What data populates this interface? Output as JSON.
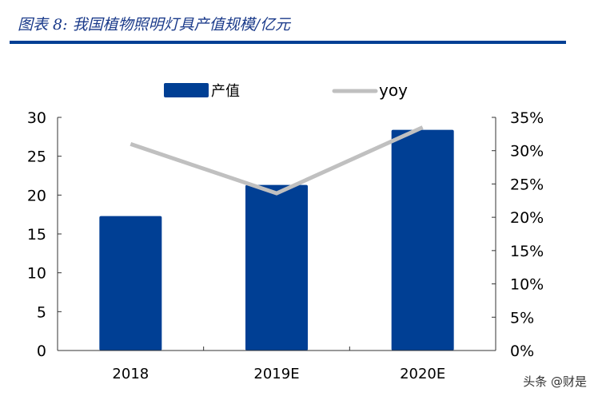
{
  "header": {
    "title": "图表 8:  我国植物照明灯具产值规模/亿元"
  },
  "watermark": "头条 @财是",
  "chart_data": {
    "type": "bar",
    "title": "图表 8:  我国植物照明灯具产值规模/亿元",
    "categories": [
      "2018",
      "2019E",
      "2020E"
    ],
    "series": [
      {
        "name": "产值",
        "type": "bar",
        "axis": "left",
        "values": [
          17.3,
          21.3,
          28.4
        ],
        "color": "#003f94"
      },
      {
        "name": "yoy",
        "type": "line",
        "axis": "right",
        "values": [
          31.0,
          23.6,
          33.5
        ],
        "color": "#c0c0c0"
      }
    ],
    "ylim": [
      0,
      30
    ],
    "yticks": [
      "0",
      "5",
      "10",
      "15",
      "20",
      "25",
      "30"
    ],
    "y2lim": [
      0,
      35
    ],
    "y2ticks": [
      "0%",
      "5%",
      "10%",
      "15%",
      "20%",
      "25%",
      "30%",
      "35%"
    ],
    "legend": "top",
    "grid": false
  }
}
